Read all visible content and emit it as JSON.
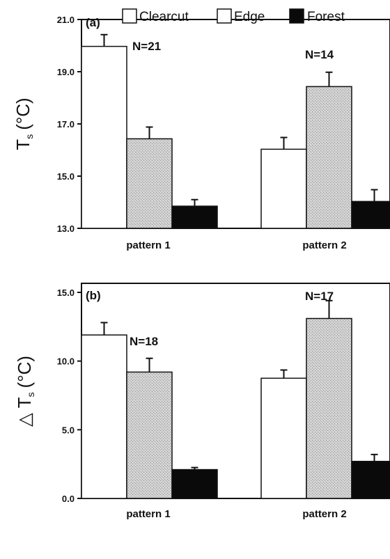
{
  "colors": {
    "Clearcut": "#ffffff",
    "Edge": "#c9c9c9",
    "Forest": "#0a0a0a"
  },
  "chart_data": [
    {
      "type": "bar",
      "panel_label": "(a)",
      "ylabel_main": "T",
      "ylabel_sub": "s",
      "ylabel_unit": "(°C)",
      "categories": [
        "pattern 1",
        "pattern 2"
      ],
      "ylim": [
        13.0,
        21.0
      ],
      "yticks": [
        "13.0",
        "15.0",
        "17.0",
        "19.0",
        "21.0"
      ],
      "ytick_values": [
        13.0,
        15.0,
        17.0,
        19.0,
        21.0
      ],
      "n_labels": [
        "N=21",
        "N=14"
      ],
      "legend": [
        "Clearcut",
        "Edge",
        "Forest"
      ],
      "legend_position": "top",
      "series": [
        {
          "name": "Clearcut",
          "values": [
            19.97,
            16.03
          ],
          "errors": [
            0.45,
            0.45
          ]
        },
        {
          "name": "Edge",
          "values": [
            16.43,
            18.43
          ],
          "errors": [
            0.45,
            0.55
          ]
        },
        {
          "name": "Forest",
          "values": [
            13.85,
            14.03
          ],
          "errors": [
            0.25,
            0.45
          ]
        }
      ]
    },
    {
      "type": "bar",
      "panel_label": "(b)",
      "ylabel_main": "△ T",
      "ylabel_sub": "s",
      "ylabel_unit": "(°C)",
      "categories": [
        "pattern 1",
        "pattern 2"
      ],
      "ylim": [
        0.0,
        15.0
      ],
      "yticks": [
        "0.0",
        "5.0",
        "10.0",
        "15.0"
      ],
      "ytick_values": [
        0.0,
        5.0,
        10.0,
        15.0
      ],
      "n_labels": [
        "N=18",
        "N=17"
      ],
      "series": [
        {
          "name": "Clearcut",
          "values": [
            11.9,
            8.75
          ],
          "errors": [
            0.9,
            0.6
          ]
        },
        {
          "name": "Edge",
          "values": [
            9.2,
            13.1
          ],
          "errors": [
            1.0,
            1.3
          ]
        },
        {
          "name": "Forest",
          "values": [
            2.1,
            2.7
          ],
          "errors": [
            0.15,
            0.5
          ]
        }
      ]
    }
  ]
}
